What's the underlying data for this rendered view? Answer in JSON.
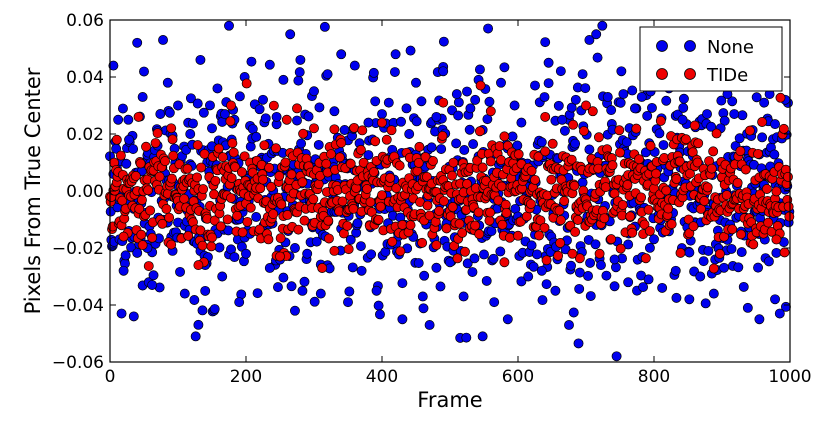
{
  "chart_data": {
    "type": "scatter",
    "title": "",
    "xlabel": "Frame",
    "ylabel": "Pixels From True Center",
    "xlim": [
      0,
      1000
    ],
    "ylim": [
      -0.06,
      0.06
    ],
    "x_ticks": [
      0,
      200,
      400,
      600,
      800,
      1000
    ],
    "x_tick_labels": [
      "0",
      "200",
      "400",
      "600",
      "800",
      "1000"
    ],
    "y_ticks": [
      -0.06,
      -0.04,
      -0.02,
      0.0,
      0.02,
      0.04,
      0.06
    ],
    "y_tick_labels": [
      "−0.06",
      "−0.04",
      "−0.02",
      "0.00",
      "0.02",
      "0.04",
      "0.06"
    ],
    "grid": false,
    "legend_position": "top-right",
    "series": [
      {
        "name": "None",
        "color": "#0000ee",
        "stats": {
          "count": 1000,
          "mean": 0.0,
          "std": 0.018
        },
        "values_note": "",
        "points": [
          [
            5,
            0.044
          ],
          [
            12,
            0.025
          ],
          [
            20,
            -0.028
          ],
          [
            28,
            0.018
          ],
          [
            35,
            -0.044
          ],
          [
            40,
            0.052
          ],
          [
            48,
            0.033
          ],
          [
            55,
            -0.02
          ],
          [
            62,
            -0.033
          ],
          [
            70,
            0.021
          ],
          [
            78,
            0.053
          ],
          [
            85,
            0.038
          ],
          [
            92,
            -0.021
          ],
          [
            100,
            0.03
          ],
          [
            110,
            -0.036
          ],
          [
            118,
            0.02
          ],
          [
            126,
            -0.051
          ],
          [
            133,
            0.046
          ],
          [
            140,
            -0.026
          ],
          [
            150,
            0.022
          ],
          [
            158,
            0.036
          ],
          [
            165,
            -0.03
          ],
          [
            175,
            0.058
          ],
          [
            183,
            0.025
          ],
          [
            190,
            -0.039
          ],
          [
            198,
            0.04
          ],
          [
            206,
            -0.015
          ],
          [
            215,
            0.019
          ],
          [
            225,
            0.032
          ],
          [
            235,
            -0.027
          ],
          [
            245,
            0.026
          ],
          [
            255,
            0.039
          ],
          [
            265,
            0.055
          ],
          [
            272,
            -0.042
          ],
          [
            280,
            0.046
          ],
          [
            290,
            -0.022
          ],
          [
            300,
            0.035
          ],
          [
            310,
            -0.036
          ],
          [
            320,
            0.041
          ],
          [
            330,
            0.028
          ],
          [
            340,
            0.048
          ],
          [
            350,
            -0.039
          ],
          [
            360,
            0.044
          ],
          [
            370,
            -0.028
          ],
          [
            380,
            0.024
          ],
          [
            392,
            -0.035
          ],
          [
            400,
            0.027
          ],
          [
            410,
            0.031
          ],
          [
            420,
            0.048
          ],
          [
            430,
            -0.045
          ],
          [
            440,
            0.02
          ],
          [
            450,
            0.038
          ],
          [
            460,
            -0.037
          ],
          [
            470,
            -0.047
          ],
          [
            480,
            0.026
          ],
          [
            490,
            0.042
          ],
          [
            500,
            -0.025
          ],
          [
            510,
            0.034
          ],
          [
            520,
            -0.037
          ],
          [
            530,
            0.029
          ],
          [
            542,
            0.039
          ],
          [
            548,
            -0.051
          ],
          [
            556,
            0.057
          ],
          [
            565,
            -0.039
          ],
          [
            575,
            0.038
          ],
          [
            585,
            -0.045
          ],
          [
            595,
            0.03
          ],
          [
            605,
            0.024
          ],
          [
            615,
            -0.03
          ],
          [
            625,
            0.037
          ],
          [
            635,
            -0.028
          ],
          [
            645,
            0.045
          ],
          [
            655,
            -0.035
          ],
          [
            665,
            0.025
          ],
          [
            675,
            -0.047
          ],
          [
            685,
            0.032
          ],
          [
            695,
            0.041
          ],
          [
            705,
            0.053
          ],
          [
            715,
            0.055
          ],
          [
            722,
            -0.026
          ],
          [
            732,
            0.033
          ],
          [
            742,
            -0.024
          ],
          [
            752,
            0.042
          ],
          [
            762,
            -0.032
          ],
          [
            772,
            0.029
          ],
          [
            782,
            0.033
          ],
          [
            792,
            -0.031
          ],
          [
            802,
            0.039
          ],
          [
            812,
            -0.034
          ],
          [
            822,
            0.036
          ],
          [
            832,
            -0.028
          ],
          [
            842,
            0.025
          ],
          [
            852,
            -0.038
          ],
          [
            860,
            0.048
          ],
          [
            868,
            -0.03
          ],
          [
            878,
            0.027
          ],
          [
            888,
            -0.036
          ],
          [
            898,
            0.022
          ],
          [
            908,
            0.034
          ],
          [
            918,
            0.027
          ],
          [
            928,
            0.042
          ],
          [
            938,
            -0.041
          ],
          [
            948,
            0.044
          ],
          [
            955,
            -0.045
          ],
          [
            962,
            0.031
          ],
          [
            970,
            0.034
          ],
          [
            978,
            -0.038
          ],
          [
            985,
            -0.043
          ],
          [
            993,
            0.032
          ]
        ]
      },
      {
        "name": "TIDe",
        "color": "#ee0000",
        "stats": {
          "count": 1000,
          "mean": 0.0,
          "std": 0.01
        },
        "points": [
          [
            10,
            0.018
          ],
          [
            42,
            0.026
          ],
          [
            90,
            0.022
          ],
          [
            178,
            0.03
          ],
          [
            260,
            0.025
          ],
          [
            275,
            0.029
          ],
          [
            300,
            0.022
          ],
          [
            400,
            0.024
          ],
          [
            490,
            0.031
          ],
          [
            545,
            0.037
          ],
          [
            560,
            0.028
          ],
          [
            580,
            -0.025
          ],
          [
            640,
            0.026
          ],
          [
            700,
            0.03
          ],
          [
            710,
            0.028
          ],
          [
            860,
            0.023
          ],
          [
            250,
            -0.023
          ],
          [
            130,
            -0.026
          ],
          [
            20,
            -0.016
          ],
          [
            330,
            -0.021
          ],
          [
            480,
            -0.019
          ],
          [
            680,
            -0.022
          ],
          [
            720,
            -0.022
          ],
          [
            980,
            -0.017
          ]
        ]
      }
    ]
  }
}
